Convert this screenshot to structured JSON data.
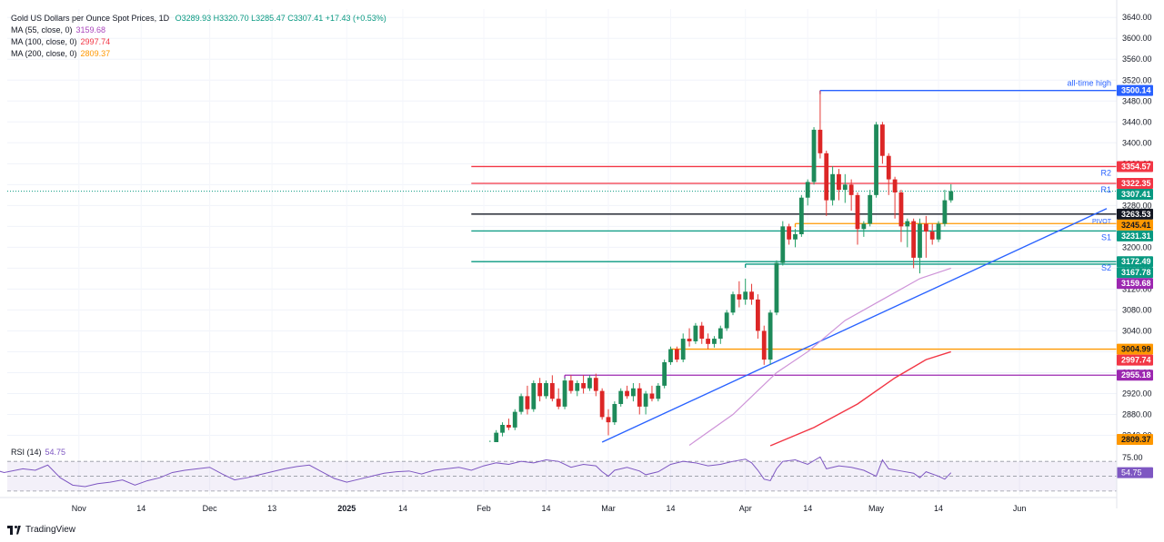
{
  "header": {
    "title": "Gold US Dollars per Ounce Spot Prices, 1D",
    "ohlc": "O3289.93 H3320.70 L3285.47 C3307.41 +17.43 (+0.53%)",
    "ohlc_color": "#089981"
  },
  "legend": [
    {
      "label": "MA (55, close, 0)",
      "value": "3159.68",
      "color": "#ab47bc"
    },
    {
      "label": "MA (100, close, 0)",
      "value": "2997.74",
      "color": "#f23645"
    },
    {
      "label": "MA (200, close, 0)",
      "value": "2809.37",
      "color": "#ff9800"
    }
  ],
  "rsi_legend": {
    "label": "RSI (14)",
    "value": "54.75"
  },
  "branding": {
    "name": "TradingView"
  },
  "chart_data": {
    "type": "candlestick",
    "title": "Gold US Dollars per Ounce Spot Prices, 1D",
    "y_range": [
      2827,
      3656
    ],
    "price_ticks": [
      "3640.00",
      "3600.00",
      "3560.00",
      "3520.00",
      "3480.00",
      "3440.00",
      "3400.00",
      "3360.00",
      "3320.00",
      "3280.00",
      "3240.00",
      "3200.00",
      "3160.00",
      "3120.00",
      "3080.00",
      "3040.00",
      "3000.00",
      "2960.00",
      "2920.00",
      "2880.00",
      "2840.00"
    ],
    "x_ticks": [
      {
        "label": "Nov",
        "bar": -65
      },
      {
        "label": "14",
        "bar": -55
      },
      {
        "label": "Dec",
        "bar": -44
      },
      {
        "label": "13",
        "bar": -34
      },
      {
        "label": "2025",
        "bar": -22
      },
      {
        "label": "14",
        "bar": -13
      },
      {
        "label": "Feb",
        "bar": 0
      },
      {
        "label": "14",
        "bar": 10
      },
      {
        "label": "Mar",
        "bar": 20
      },
      {
        "label": "14",
        "bar": 30
      },
      {
        "label": "Apr",
        "bar": 42
      },
      {
        "label": "14",
        "bar": 52
      },
      {
        "label": "May",
        "bar": 63
      },
      {
        "label": "14",
        "bar": 73
      },
      {
        "label": "Jun",
        "bar": 86
      }
    ],
    "candles": [
      [
        2800,
        2815,
        2795,
        2812
      ],
      [
        2812,
        2830,
        2805,
        2825
      ],
      [
        2825,
        2850,
        2820,
        2845
      ],
      [
        2845,
        2865,
        2838,
        2860
      ],
      [
        2860,
        2872,
        2850,
        2855
      ],
      [
        2855,
        2890,
        2850,
        2885
      ],
      [
        2885,
        2920,
        2880,
        2915
      ],
      [
        2915,
        2935,
        2880,
        2890
      ],
      [
        2890,
        2945,
        2885,
        2940
      ],
      [
        2940,
        2950,
        2905,
        2915
      ],
      [
        2915,
        2945,
        2910,
        2940
      ],
      [
        2940,
        2955,
        2905,
        2910
      ],
      [
        2910,
        2930,
        2890,
        2895
      ],
      [
        2895,
        2950,
        2890,
        2945
      ],
      [
        2945,
        2955,
        2920,
        2925
      ],
      [
        2925,
        2945,
        2915,
        2940
      ],
      [
        2940,
        2955,
        2920,
        2930
      ],
      [
        2930,
        2955,
        2925,
        2950
      ],
      [
        2950,
        2958,
        2915,
        2925
      ],
      [
        2925,
        2930,
        2870,
        2875
      ],
      [
        2875,
        2890,
        2840,
        2865
      ],
      [
        2865,
        2905,
        2860,
        2900
      ],
      [
        2900,
        2930,
        2895,
        2925
      ],
      [
        2925,
        2935,
        2910,
        2915
      ],
      [
        2915,
        2940,
        2905,
        2930
      ],
      [
        2930,
        2940,
        2880,
        2895
      ],
      [
        2895,
        2925,
        2880,
        2920
      ],
      [
        2920,
        2935,
        2905,
        2910
      ],
      [
        2910,
        2940,
        2905,
        2935
      ],
      [
        2935,
        2985,
        2930,
        2980
      ],
      [
        2980,
        3010,
        2975,
        3005
      ],
      [
        3005,
        3010,
        2980,
        2985
      ],
      [
        2985,
        3035,
        2980,
        3025
      ],
      [
        3025,
        3045,
        3010,
        3020
      ],
      [
        3020,
        3055,
        3015,
        3050
      ],
      [
        3050,
        3057,
        3015,
        3025
      ],
      [
        3025,
        3035,
        3005,
        3015
      ],
      [
        3015,
        3030,
        3008,
        3025
      ],
      [
        3025,
        3050,
        3015,
        3045
      ],
      [
        3045,
        3080,
        3040,
        3075
      ],
      [
        3075,
        3115,
        3070,
        3110
      ],
      [
        3110,
        3135,
        3085,
        3100
      ],
      [
        3100,
        3140,
        3090,
        3115
      ],
      [
        3115,
        3130,
        3090,
        3100
      ],
      [
        3100,
        3110,
        3025,
        3040
      ],
      [
        3040,
        3050,
        2975,
        2985
      ],
      [
        2985,
        3080,
        2975,
        3075
      ],
      [
        3075,
        3175,
        3070,
        3170
      ],
      [
        3170,
        3250,
        3165,
        3240
      ],
      [
        3240,
        3245,
        3205,
        3215
      ],
      [
        3215,
        3235,
        3200,
        3225
      ],
      [
        3225,
        3300,
        3220,
        3295
      ],
      [
        3295,
        3330,
        3280,
        3325
      ],
      [
        3325,
        3430,
        3320,
        3425
      ],
      [
        3425,
        3500,
        3370,
        3380
      ],
      [
        3380,
        3385,
        3260,
        3290
      ],
      [
        3290,
        3355,
        3280,
        3340
      ],
      [
        3340,
        3350,
        3290,
        3310
      ],
      [
        3310,
        3340,
        3285,
        3320
      ],
      [
        3320,
        3330,
        3270,
        3300
      ],
      [
        3300,
        3305,
        3205,
        3235
      ],
      [
        3235,
        3250,
        3220,
        3245
      ],
      [
        3245,
        3310,
        3240,
        3300
      ],
      [
        3300,
        3440,
        3295,
        3435
      ],
      [
        3435,
        3440,
        3360,
        3375
      ],
      [
        3375,
        3380,
        3300,
        3330
      ],
      [
        3330,
        3335,
        3255,
        3305
      ],
      [
        3305,
        3310,
        3210,
        3240
      ],
      [
        3240,
        3255,
        3200,
        3250
      ],
      [
        3250,
        3255,
        3160,
        3180
      ],
      [
        3180,
        3255,
        3150,
        3245
      ],
      [
        3245,
        3260,
        3180,
        3230
      ],
      [
        3230,
        3245,
        3205,
        3215
      ],
      [
        3215,
        3250,
        3210,
        3245
      ],
      [
        3245,
        3310,
        3240,
        3290
      ],
      [
        3289.93,
        3320.7,
        3285.47,
        3307.41
      ]
    ],
    "ma55": [
      [
        33,
        2821
      ],
      [
        40,
        2880
      ],
      [
        47,
        2960
      ],
      [
        52,
        3000
      ],
      [
        58,
        3060
      ],
      [
        64,
        3100
      ],
      [
        70,
        3140
      ],
      [
        75,
        3160
      ]
    ],
    "ma100": [
      [
        46,
        2820
      ],
      [
        53,
        2855
      ],
      [
        60,
        2900
      ],
      [
        66,
        2950
      ],
      [
        71,
        2985
      ],
      [
        75,
        3000
      ]
    ],
    "ma200": [
      [
        88,
        2809.37
      ]
    ],
    "trendline": [
      [
        19,
        2827
      ],
      [
        100,
        3274
      ]
    ],
    "hlines": [
      {
        "value": 3500.14,
        "start": 54,
        "color": "#2962ff",
        "note": "all-time high"
      },
      {
        "value": 3354.57,
        "start": -2,
        "color": "#f23645"
      },
      {
        "value": 3322.35,
        "start": -2,
        "color": "#f23645"
      },
      {
        "value": 3263.53,
        "start": -2,
        "color": "#131722"
      },
      {
        "value": 3245.41,
        "start": 50,
        "color": "#ff9800"
      },
      {
        "value": 3231.31,
        "start": -2,
        "color": "#089981"
      },
      {
        "value": 3172.49,
        "start": -2,
        "color": "#089981"
      },
      {
        "value": 3167.78,
        "start": 42,
        "color": "#089981"
      },
      {
        "value": 3004.99,
        "start": 30,
        "color": "#ff9800"
      },
      {
        "value": 2955.18,
        "start": 13,
        "color": "#9c27b0"
      }
    ],
    "pivot_labels": [
      "R2",
      "R1",
      "PIVOT",
      "S1",
      "S2"
    ],
    "price_labels": [
      {
        "text": "3500.14",
        "value": 3500.14,
        "bg": "#2962ff",
        "fg": "#ffffff"
      },
      {
        "text": "3354.57",
        "value": 3354.57,
        "bg": "#f23645",
        "fg": "#ffffff"
      },
      {
        "text": "3322.35",
        "value": 3322.35,
        "bg": "#f23645",
        "fg": "#ffffff"
      },
      {
        "text": "3307.41",
        "value": 3307.41,
        "bg": "#089981",
        "fg": "#ffffff"
      },
      {
        "text": "3263.53",
        "value": 3263.53,
        "bg": "#131722",
        "fg": "#ffffff"
      },
      {
        "text": "3245.41",
        "value": 3245.41,
        "bg": "#ff9800",
        "fg": "#131722"
      },
      {
        "text": "3231.31",
        "value": 3231.31,
        "bg": "#089981",
        "fg": "#ffffff"
      },
      {
        "text": "3172.49",
        "value": 3172.49,
        "bg": "#089981",
        "fg": "#ffffff"
      },
      {
        "text": "3167.78",
        "value": 3167.78,
        "bg": "#089981",
        "fg": "#ffffff"
      },
      {
        "text": "3159.68",
        "value": 3159.68,
        "bg": "#9c27b0",
        "fg": "#ffffff"
      },
      {
        "text": "3004.99",
        "value": 3004.99,
        "bg": "#ff9800",
        "fg": "#131722"
      },
      {
        "text": "2997.74",
        "value": 2997.74,
        "bg": "#f23645",
        "fg": "#ffffff"
      },
      {
        "text": "2955.18",
        "value": 2955.18,
        "bg": "#9c27b0",
        "fg": "#ffffff"
      },
      {
        "text": "2809.37",
        "value": 2809.37,
        "bg": "#ff9800",
        "fg": "#131722"
      }
    ],
    "rsi": {
      "levels": [
        70,
        50,
        30
      ],
      "tick_label": "75.00",
      "value_label": "54.75",
      "values": [
        [
          -80,
          62
        ],
        [
          -77,
          55
        ],
        [
          -74,
          60
        ],
        [
          -72,
          58
        ],
        [
          -70,
          65
        ],
        [
          -68,
          48
        ],
        [
          -66,
          38
        ],
        [
          -64,
          36
        ],
        [
          -62,
          40
        ],
        [
          -60,
          42
        ],
        [
          -58,
          45
        ],
        [
          -56,
          38
        ],
        [
          -54,
          44
        ],
        [
          -52,
          48
        ],
        [
          -50,
          55
        ],
        [
          -48,
          58
        ],
        [
          -46,
          60
        ],
        [
          -44,
          62
        ],
        [
          -42,
          53
        ],
        [
          -40,
          45
        ],
        [
          -38,
          48
        ],
        [
          -36,
          52
        ],
        [
          -34,
          56
        ],
        [
          -32,
          60
        ],
        [
          -30,
          63
        ],
        [
          -28,
          65
        ],
        [
          -26,
          56
        ],
        [
          -24,
          47
        ],
        [
          -22,
          42
        ],
        [
          -20,
          46
        ],
        [
          -18,
          50
        ],
        [
          -16,
          54
        ],
        [
          -14,
          56
        ],
        [
          -12,
          57
        ],
        [
          -10,
          53
        ],
        [
          -8,
          58
        ],
        [
          -6,
          60
        ],
        [
          -4,
          62
        ],
        [
          -2,
          58
        ],
        [
          0,
          64
        ],
        [
          2,
          68
        ],
        [
          4,
          66
        ],
        [
          6,
          70
        ],
        [
          8,
          68
        ],
        [
          10,
          72
        ],
        [
          12,
          70
        ],
        [
          14,
          62
        ],
        [
          16,
          66
        ],
        [
          18,
          64
        ],
        [
          19,
          56
        ],
        [
          20,
          50
        ],
        [
          21,
          58
        ],
        [
          23,
          62
        ],
        [
          25,
          57
        ],
        [
          26,
          52
        ],
        [
          28,
          56
        ],
        [
          30,
          66
        ],
        [
          32,
          70
        ],
        [
          34,
          68
        ],
        [
          36,
          64
        ],
        [
          38,
          66
        ],
        [
          40,
          70
        ],
        [
          42,
          73
        ],
        [
          43,
          68
        ],
        [
          44,
          58
        ],
        [
          45,
          46
        ],
        [
          46,
          44
        ],
        [
          47,
          60
        ],
        [
          48,
          70
        ],
        [
          50,
          72
        ],
        [
          52,
          66
        ],
        [
          54,
          76
        ],
        [
          55,
          60
        ],
        [
          57,
          64
        ],
        [
          59,
          62
        ],
        [
          61,
          58
        ],
        [
          63,
          50
        ],
        [
          64,
          72
        ],
        [
          65,
          60
        ],
        [
          67,
          57
        ],
        [
          69,
          54
        ],
        [
          70,
          48
        ],
        [
          71,
          56
        ],
        [
          73,
          50
        ],
        [
          74,
          46
        ],
        [
          75,
          54.75
        ]
      ]
    }
  }
}
